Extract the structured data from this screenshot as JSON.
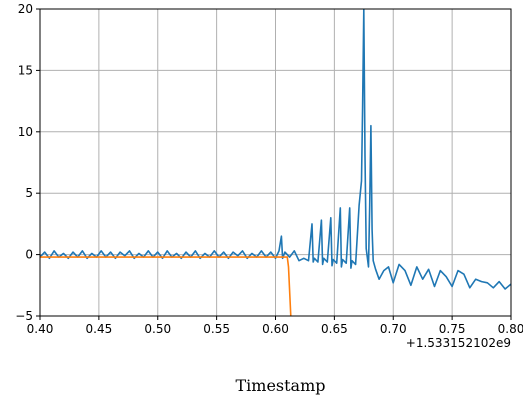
{
  "chart_data": {
    "type": "line",
    "xlabel": "Timestamp",
    "x_offset_label": "+1.533152102e9",
    "xlim": [
      0.4,
      0.8
    ],
    "ylim": [
      -5,
      20
    ],
    "grid": true,
    "x_ticks": [
      0.4,
      0.45,
      0.5,
      0.55,
      0.6,
      0.65,
      0.7,
      0.75,
      0.8
    ],
    "x_tick_labels": [
      "0.40",
      "0.45",
      "0.50",
      "0.55",
      "0.60",
      "0.65",
      "0.70",
      "0.75",
      "0.80"
    ],
    "y_ticks": [
      -5,
      0,
      5,
      10,
      15,
      20
    ],
    "y_tick_labels": [
      "−5",
      "0",
      "5",
      "10",
      "15",
      "20"
    ],
    "colors": {
      "series_1": "#1f77b4",
      "series_2": "#ff7f0e",
      "grid": "#b0b0b0"
    },
    "series": [
      {
        "color": "#1f77b4",
        "x": [
          0.4,
          0.404,
          0.408,
          0.412,
          0.416,
          0.42,
          0.424,
          0.428,
          0.432,
          0.436,
          0.44,
          0.444,
          0.448,
          0.452,
          0.456,
          0.46,
          0.464,
          0.468,
          0.472,
          0.476,
          0.48,
          0.484,
          0.488,
          0.492,
          0.496,
          0.5,
          0.504,
          0.508,
          0.512,
          0.516,
          0.52,
          0.524,
          0.528,
          0.532,
          0.536,
          0.54,
          0.544,
          0.548,
          0.552,
          0.556,
          0.56,
          0.564,
          0.568,
          0.572,
          0.576,
          0.58,
          0.584,
          0.588,
          0.592,
          0.596,
          0.6,
          0.603,
          0.605,
          0.606,
          0.608,
          0.612,
          0.616,
          0.62,
          0.624,
          0.628,
          0.631,
          0.632,
          0.633,
          0.636,
          0.639,
          0.64,
          0.641,
          0.644,
          0.647,
          0.648,
          0.649,
          0.652,
          0.655,
          0.656,
          0.657,
          0.66,
          0.663,
          0.664,
          0.665,
          0.668,
          0.671,
          0.673,
          0.674,
          0.675,
          0.676,
          0.677,
          0.679,
          0.68,
          0.681,
          0.682,
          0.683,
          0.685,
          0.688,
          0.692,
          0.696,
          0.7,
          0.705,
          0.71,
          0.715,
          0.72,
          0.725,
          0.73,
          0.735,
          0.74,
          0.745,
          0.75,
          0.755,
          0.76,
          0.765,
          0.77,
          0.775,
          0.78,
          0.785,
          0.79,
          0.795,
          0.8
        ],
        "values": [
          -0.2,
          0.2,
          -0.3,
          0.3,
          -0.2,
          0.1,
          -0.3,
          0.2,
          -0.2,
          0.3,
          -0.3,
          0.1,
          -0.2,
          0.3,
          -0.2,
          0.2,
          -0.3,
          0.2,
          -0.1,
          0.3,
          -0.3,
          0.1,
          -0.2,
          0.3,
          -0.2,
          0.2,
          -0.3,
          0.3,
          -0.2,
          0.1,
          -0.3,
          0.2,
          -0.2,
          0.3,
          -0.3,
          0.1,
          -0.2,
          0.3,
          -0.2,
          0.2,
          -0.3,
          0.2,
          -0.1,
          0.3,
          -0.3,
          0.1,
          -0.2,
          0.3,
          -0.2,
          0.2,
          -0.3,
          0.3,
          1.5,
          -0.3,
          0.2,
          -0.2,
          0.3,
          -0.5,
          -0.3,
          -0.5,
          2.5,
          -0.6,
          -0.3,
          -0.6,
          2.8,
          -0.8,
          -0.3,
          -0.6,
          3.0,
          -0.9,
          -0.4,
          -0.7,
          3.8,
          -1.0,
          -0.4,
          -0.7,
          3.8,
          -1.1,
          -0.5,
          -0.8,
          4.0,
          6.0,
          12.0,
          20.0,
          8.0,
          0.5,
          -1.0,
          4.0,
          10.5,
          2.0,
          -0.5,
          -1.2,
          -2.0,
          -1.3,
          -1.0,
          -2.3,
          -0.8,
          -1.3,
          -2.5,
          -1.0,
          -2.0,
          -1.2,
          -2.6,
          -1.3,
          -1.8,
          -2.6,
          -1.3,
          -1.6,
          -2.7,
          -2.0,
          -2.2,
          -2.3,
          -2.7,
          -2.2,
          -2.8,
          -2.4
        ]
      },
      {
        "color": "#ff7f0e",
        "x": [
          0.4,
          0.45,
          0.5,
          0.55,
          0.6,
          0.61,
          0.611,
          0.613
        ],
        "values": [
          -0.2,
          -0.2,
          -0.2,
          -0.2,
          -0.2,
          -0.2,
          -1.0,
          -5.0
        ]
      }
    ]
  }
}
